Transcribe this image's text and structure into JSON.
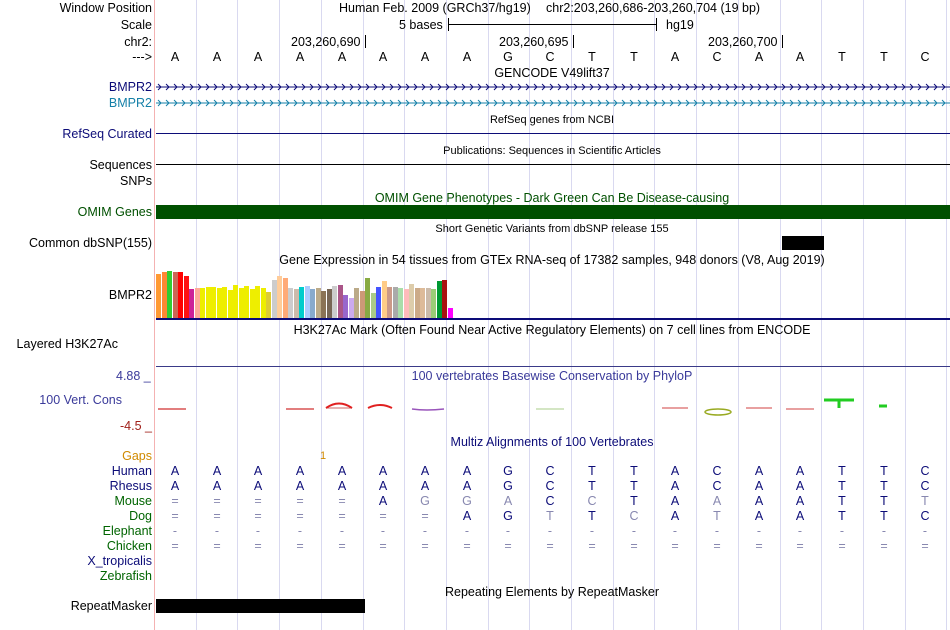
{
  "header": {
    "window_position_label": "Window Position",
    "scale_label": "Scale",
    "chr_label": "chr2:",
    "arrow_label": "--->",
    "assembly": "Human Feb. 2009 (GRCh37/hg19)",
    "position": "chr2:203,260,686-203,260,704 (19 bp)",
    "scale_text": "5 bases",
    "db": "hg19",
    "ticks": [
      "203,260,690",
      "203,260,695",
      "203,260,700"
    ],
    "bases": [
      "A",
      "A",
      "A",
      "A",
      "A",
      "A",
      "A",
      "A",
      "G",
      "C",
      "T",
      "T",
      "A",
      "C",
      "A",
      "A",
      "T",
      "T",
      "C"
    ]
  },
  "tracks": {
    "gencode": {
      "title": "GENCODE V49lift37",
      "labels": [
        "BMPR2",
        "BMPR2"
      ],
      "colors": [
        "#0c0c78",
        "#1580a8"
      ]
    },
    "refseq": {
      "title": "RefSeq genes from NCBI",
      "label": "RefSeq Curated",
      "color": "#0c0c78"
    },
    "publications": {
      "title": "Publications: Sequences in Scientific Articles",
      "label": "Sequences"
    },
    "snps": {
      "label": "SNPs"
    },
    "omim": {
      "title": "OMIM Gene Phenotypes - Dark Green Can Be Disease-causing",
      "label": "OMIM Genes",
      "color": "#005000"
    },
    "dbsnp": {
      "title": "Short Genetic Variants from dbSNP release 155",
      "label": "Common dbSNP(155)"
    },
    "gtex": {
      "title": "Gene Expression in 54 tissues from GTEx RNA-seq of 17382 samples, 948 donors (V8, Aug 2019)",
      "label": "BMPR2",
      "values": [
        44,
        46,
        47,
        46,
        46,
        42,
        29,
        30,
        30,
        31,
        31,
        30,
        31,
        28,
        33,
        30,
        32,
        29,
        32,
        30,
        26,
        38,
        42,
        40,
        30,
        29,
        31,
        32,
        29,
        30,
        27,
        29,
        32,
        33,
        23,
        20,
        30,
        27,
        40,
        25,
        31,
        37,
        31,
        31,
        30,
        29,
        34,
        30,
        30,
        30,
        29,
        37,
        38,
        10
      ],
      "colors": [
        "#ff9933",
        "#ff8833",
        "#33cc33",
        "#cc6655",
        "#ff0000",
        "#ff1111",
        "#cc2299",
        "#ffaa99",
        "#eeee00",
        "#eeee00",
        "#eeee00",
        "#eeee00",
        "#eeee00",
        "#eeee00",
        "#eeee00",
        "#eeee00",
        "#eeee00",
        "#eeee00",
        "#eeee00",
        "#eeee00",
        "#ddcc33",
        "#cccccc",
        "#ffcc99",
        "#ffaa77",
        "#cccccc",
        "#ccbbaa",
        "#00cccc",
        "#aaccff",
        "#88aacc",
        "#bbaa88",
        "#8b7355",
        "#776655",
        "#cccccc",
        "#aa5588",
        "#9966cc",
        "#ccaaee",
        "#bbaa88",
        "#cc9977",
        "#88aa44",
        "#aacc88",
        "#4455ff",
        "#ffcc88",
        "#cc9988",
        "#aaaaaa",
        "#aaddaa",
        "#ffbbbb",
        "#ddccaa",
        "#ccaa88",
        "#ddbb99",
        "#ccbbaa",
        "#99cc77",
        "#009933",
        "#aa1111",
        "#ff00ff"
      ]
    },
    "h3k27ac": {
      "title": "H3K27Ac Mark (Often Found Near Active Regulatory Elements) on 7 cell lines from ENCODE",
      "label": "Layered H3K27Ac"
    },
    "phylop": {
      "title": "100 vertebrates Basewise Conservation by PhyloP",
      "label": "100 Vert. Cons",
      "ymax": "4.88 _",
      "ymin": "-4.5 _"
    },
    "multiz": {
      "title": "Multiz Alignments of 100 Vertebrates",
      "gaps_label": "Gaps",
      "gap_count": "1",
      "species": [
        {
          "name": "Human",
          "color": "#0c0c78",
          "bases": [
            "A",
            "A",
            "A",
            "A",
            "A",
            "A",
            "A",
            "A",
            "G",
            "C",
            "T",
            "T",
            "A",
            "C",
            "A",
            "A",
            "T",
            "T",
            "C"
          ]
        },
        {
          "name": "Rhesus",
          "color": "#0c0c78",
          "bases": [
            "A",
            "A",
            "A",
            "A",
            "A",
            "A",
            "A",
            "A",
            "G",
            "C",
            "T",
            "T",
            "A",
            "C",
            "A",
            "A",
            "T",
            "T",
            "C"
          ]
        },
        {
          "name": "Mouse",
          "color": "#006400",
          "bases": [
            "=",
            "=",
            "=",
            "=",
            "=",
            "A",
            "G",
            "G",
            "A",
            "C",
            "C",
            "T",
            "A",
            "A",
            "A",
            "A",
            "T",
            "T",
            "T"
          ]
        },
        {
          "name": "Dog",
          "color": "#006400",
          "bases": [
            "=",
            "=",
            "=",
            "=",
            "=",
            "=",
            "=",
            "A",
            "G",
            "T",
            "T",
            "C",
            "A",
            "T",
            "A",
            "A",
            "T",
            "T",
            "C"
          ]
        },
        {
          "name": "Elephant",
          "color": "#006400",
          "bases": [
            "-",
            "-",
            "-",
            "-",
            "-",
            "-",
            "-",
            "-",
            "-",
            "-",
            "-",
            "-",
            "-",
            "-",
            "-",
            "-",
            "-",
            "-",
            "-"
          ]
        },
        {
          "name": "Chicken",
          "color": "#006400",
          "bases": [
            "=",
            "=",
            "=",
            "=",
            "=",
            "=",
            "=",
            "=",
            "=",
            "=",
            "=",
            "=",
            "=",
            "=",
            "=",
            "=",
            "=",
            "=",
            "="
          ]
        },
        {
          "name": "X_tropicalis",
          "color": "#0c0c78",
          "bases": []
        },
        {
          "name": "Zebrafish",
          "color": "#006400",
          "bases": []
        }
      ]
    },
    "repeatmasker": {
      "title": "Repeating Elements by RepeatMasker",
      "label": "RepeatMasker"
    }
  }
}
